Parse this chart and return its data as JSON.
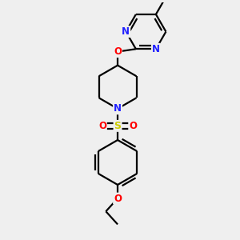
{
  "bg_color": "#efefef",
  "atom_colors": {
    "C": "#000000",
    "N": "#2020ff",
    "O": "#ff0000",
    "S": "#cccc00"
  },
  "line_color": "#000000",
  "line_width": 1.6,
  "figsize": [
    3.0,
    3.0
  ],
  "dpi": 100,
  "xlim": [
    0,
    10
  ],
  "ylim": [
    0,
    10
  ]
}
